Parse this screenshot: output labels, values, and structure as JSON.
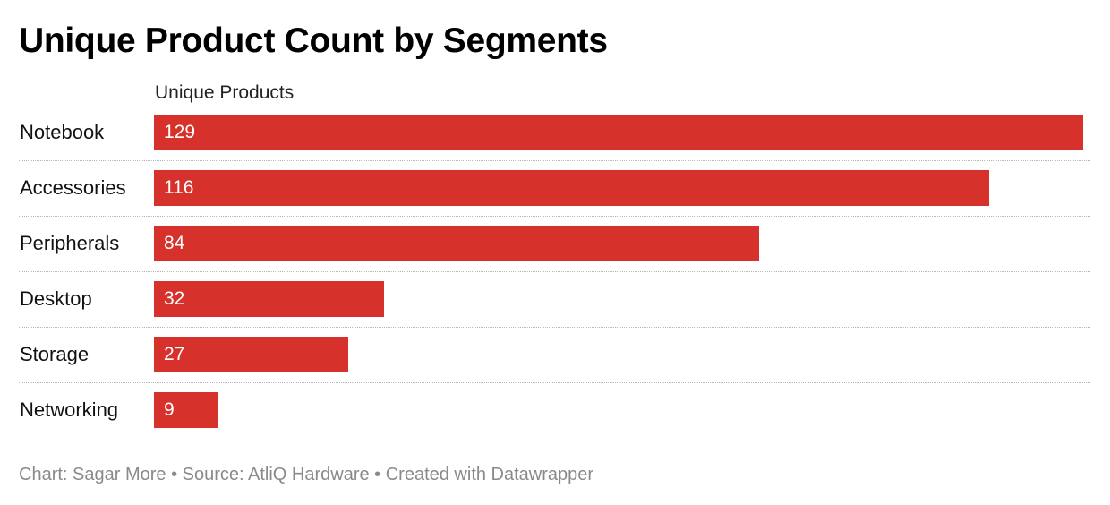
{
  "chart_data": {
    "type": "bar",
    "orientation": "horizontal",
    "title": "Unique Product Count by Segments",
    "column_header": "Unique Products",
    "categories": [
      "Notebook",
      "Accessories",
      "Peripherals",
      "Desktop",
      "Storage",
      "Networking"
    ],
    "values": [
      129,
      116,
      84,
      32,
      27,
      9
    ],
    "xlim": [
      0,
      129
    ],
    "grid": false,
    "legend": "none",
    "bar_color": "#d7312c",
    "footer": "Chart: Sagar More • Source: AtliQ Hardware • Created with Datawrapper"
  }
}
